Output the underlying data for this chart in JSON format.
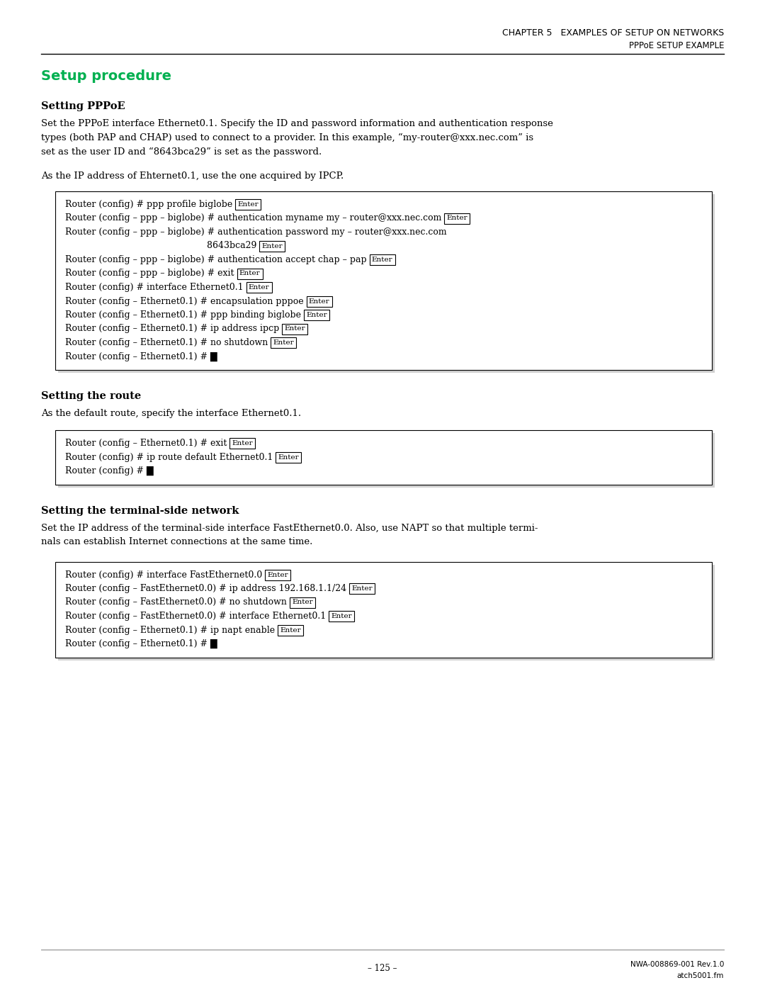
{
  "bg_color": "#ffffff",
  "header_title": "CHAPTER 5   EXAMPLES OF SETUP ON NETWORKS",
  "header_subtitle": "PPPoE SETUP EXAMPLE",
  "section_title": "Setup procedure",
  "section_title_color": "#00b050",
  "subsection1_title": "Setting PPPoE",
  "subsection1_body1_lines": [
    "Set the PPPoE interface Ethernet0.1. Specify the ID and password information and authentication response",
    "types (both PAP and CHAP) used to connect to a provider. In this example, “my-router@xxx.nec.com” is",
    "set as the user ID and “8643bca29” is set as the password."
  ],
  "subsection1_body2": "As the IP address of Ehternet0.1, use the one acquired by IPCP.",
  "box1_lines": [
    {
      "text": "Router (config) # ppp profile biglobe",
      "enter": true
    },
    {
      "text": "Router (config – ppp – biglobe) # authentication myname my – router@xxx.nec.com",
      "enter": true
    },
    {
      "text": "Router (config – ppp – biglobe) # authentication password my – router@xxx.nec.com",
      "enter": false
    },
    {
      "text": "                                                  8643bca29",
      "enter": true
    },
    {
      "text": "Router (config – ppp – biglobe) # authentication accept chap – pap",
      "enter": true
    },
    {
      "text": "Router (config – ppp – biglobe) # exit",
      "enter": true
    },
    {
      "text": "Router (config) # interface Ethernet0.1",
      "enter": true
    },
    {
      "text": "Router (config – Ethernet0.1) # encapsulation pppoe",
      "enter": true
    },
    {
      "text": "Router (config – Ethernet0.1) # ppp binding biglobe",
      "enter": true
    },
    {
      "text": "Router (config – Ethernet0.1) # ip address ipcp",
      "enter": true
    },
    {
      "text": "Router (config – Ethernet0.1) # no shutdown",
      "enter": true
    },
    {
      "text": "Router (config – Ethernet0.1) # █",
      "enter": false
    }
  ],
  "subsection2_title": "Setting the route",
  "subsection2_body": "As the default route, specify the interface Ethernet0.1.",
  "box2_lines": [
    {
      "text": "Router (config – Ethernet0.1) # exit",
      "enter": true
    },
    {
      "text": "Router (config) # ip route default Ethernet0.1",
      "enter": true
    },
    {
      "text": "Router (config) # █",
      "enter": false
    }
  ],
  "subsection3_title": "Setting the terminal-side network",
  "subsection3_body_lines": [
    "Set the IP address of the terminal-side interface FastEthernet0.0. Also, use NAPT so that multiple termi-",
    "nals can establish Internet connections at the same time."
  ],
  "box3_lines": [
    {
      "text": "Router (config) # interface FastEthernet0.0",
      "enter": true
    },
    {
      "text": "Router (config – FastEthernet0.0) # ip address 192.168.1.1/24",
      "enter": true
    },
    {
      "text": "Router (config – FastEthernet0.0) # no shutdown",
      "enter": true
    },
    {
      "text": "Router (config – FastEthernet0.0) # interface Ethernet0.1",
      "enter": true
    },
    {
      "text": "Router (config – Ethernet0.1) # ip napt enable",
      "enter": true
    },
    {
      "text": "Router (config – Ethernet0.1) # █",
      "enter": false
    }
  ],
  "footer_page": "– 125 –",
  "footer_right1": "NWA-008869-001 Rev.1.0",
  "footer_right2": "atch5001.fm"
}
